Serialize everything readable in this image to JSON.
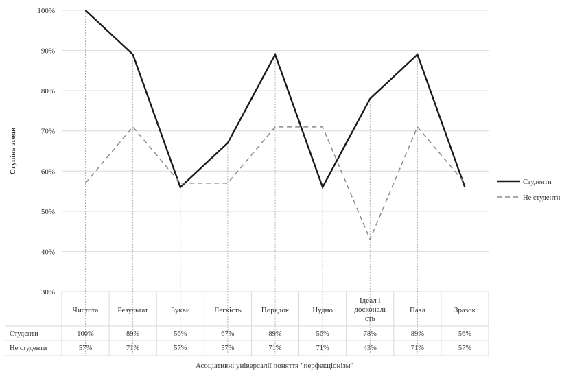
{
  "chart_data": {
    "type": "line",
    "title": "",
    "xlabel": "Асоціативні універсалії поняття \"перфекціонізм\"",
    "ylabel": "Ступінь згоди",
    "ylim": [
      30,
      100
    ],
    "yticks": [
      "30%",
      "40%",
      "50%",
      "60%",
      "70%",
      "80%",
      "90%",
      "100%"
    ],
    "grid": true,
    "legend_position": "right",
    "categories": [
      [
        "Чистота"
      ],
      [
        "Результат"
      ],
      [
        "Букви"
      ],
      [
        "Легкість"
      ],
      [
        "Порядок"
      ],
      [
        "Нудно"
      ],
      [
        "Ідеал і",
        "досконалі",
        "сть"
      ],
      [
        "Пазл"
      ],
      [
        "Зразок"
      ]
    ],
    "series": [
      {
        "name": "Студенти",
        "style": "solid",
        "color": "#1a1a1a",
        "values": [
          100,
          89,
          56,
          67,
          89,
          56,
          78,
          89,
          56
        ],
        "labels": [
          "100%",
          "89%",
          "56%",
          "67%",
          "89%",
          "56%",
          "78%",
          "89%",
          "56%"
        ]
      },
      {
        "name": "Не студенти",
        "style": "dashed",
        "color": "#8a8a8a",
        "values": [
          57,
          71,
          57,
          57,
          71,
          71,
          43,
          71,
          57
        ],
        "labels": [
          "57%",
          "71%",
          "57%",
          "57%",
          "71%",
          "71%",
          "43%",
          "71%",
          "57%"
        ]
      }
    ]
  }
}
